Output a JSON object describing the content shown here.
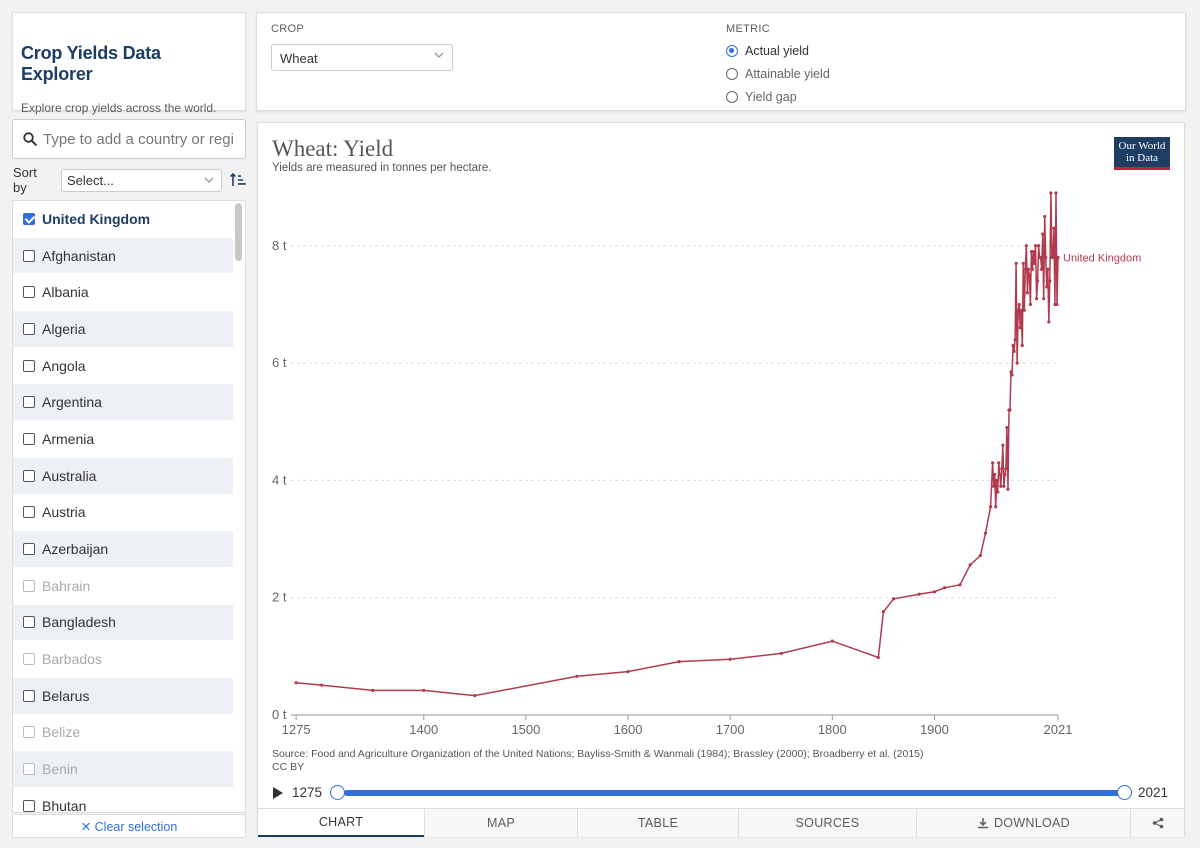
{
  "app": {
    "title": "Crop Yields Data Explorer",
    "subtitle": "Explore crop yields across the world."
  },
  "controls": {
    "crop_label": "CROP",
    "crop_value": "Wheat",
    "metric_label": "METRIC",
    "metric_options": [
      {
        "label": "Actual yield",
        "selected": true
      },
      {
        "label": "Attainable yield",
        "selected": false
      },
      {
        "label": "Yield gap",
        "selected": false
      }
    ]
  },
  "sidebar": {
    "search_placeholder": "Type to add a country or region",
    "sort_label": "Sort by",
    "sort_value": "Select...",
    "countries": [
      {
        "label": "United Kingdom",
        "checked": true,
        "disabled": false
      },
      {
        "label": "Afghanistan",
        "checked": false,
        "disabled": false
      },
      {
        "label": "Albania",
        "checked": false,
        "disabled": false
      },
      {
        "label": "Algeria",
        "checked": false,
        "disabled": false
      },
      {
        "label": "Angola",
        "checked": false,
        "disabled": false
      },
      {
        "label": "Argentina",
        "checked": false,
        "disabled": false
      },
      {
        "label": "Armenia",
        "checked": false,
        "disabled": false
      },
      {
        "label": "Australia",
        "checked": false,
        "disabled": false
      },
      {
        "label": "Austria",
        "checked": false,
        "disabled": false
      },
      {
        "label": "Azerbaijan",
        "checked": false,
        "disabled": false
      },
      {
        "label": "Bahrain",
        "checked": false,
        "disabled": true
      },
      {
        "label": "Bangladesh",
        "checked": false,
        "disabled": false
      },
      {
        "label": "Barbados",
        "checked": false,
        "disabled": true
      },
      {
        "label": "Belarus",
        "checked": false,
        "disabled": false
      },
      {
        "label": "Belize",
        "checked": false,
        "disabled": true
      },
      {
        "label": "Benin",
        "checked": false,
        "disabled": true
      },
      {
        "label": "Bhutan",
        "checked": false,
        "disabled": false
      }
    ],
    "clear_label": "✕ Clear selection"
  },
  "chart": {
    "title": "Wheat: Yield",
    "subtitle": "Yields are measured in tonnes per hectare.",
    "logo_line1": "Our World",
    "logo_line2": "in Data",
    "source_line1": "Source: Food and Agriculture Organization of the United Nations; Bayliss-Smith & Wanmali (1984); Brassley (2000); Broadberry et al. (2015)",
    "source_line2": "CC BY"
  },
  "timeline": {
    "start": "1275",
    "end": "2021"
  },
  "tabs": [
    {
      "label": "CHART",
      "active": true
    },
    {
      "label": "MAP",
      "active": false
    },
    {
      "label": "TABLE",
      "active": false
    },
    {
      "label": "SOURCES",
      "active": false
    },
    {
      "label": "DOWNLOAD",
      "active": false
    }
  ],
  "colors": {
    "series": "#b13b4e",
    "accent": "#2f6fde",
    "brand": "#1d3d63"
  },
  "chart_data": {
    "type": "line",
    "title": "Wheat: Yield",
    "subtitle": "Yields are measured in tonnes per hectare.",
    "xlabel": "",
    "ylabel": "",
    "xlim": [
      1270,
      2021
    ],
    "ylim": [
      0,
      8.9
    ],
    "x_ticks": [
      "1275",
      "1400",
      "1500",
      "1600",
      "1700",
      "1800",
      "1900",
      "2021"
    ],
    "x_tick_values": [
      1275,
      1400,
      1500,
      1600,
      1700,
      1800,
      1900,
      2021
    ],
    "y_ticks": [
      "0 t",
      "2 t",
      "4 t",
      "6 t",
      "8 t"
    ],
    "y_tick_values": [
      0,
      2,
      4,
      6,
      8
    ],
    "grid": "horizontal-dashed",
    "legend": "end-of-line label",
    "series": [
      {
        "name": "United Kingdom",
        "x": [
          1275,
          1300,
          1350,
          1400,
          1450,
          1550,
          1600,
          1650,
          1700,
          1750,
          1800,
          1845,
          1850,
          1860,
          1885,
          1900,
          1910,
          1925,
          1935,
          1945,
          1950,
          1955,
          1957,
          1958,
          1959,
          1960,
          1961,
          1962,
          1963,
          1964,
          1965,
          1966,
          1967,
          1968,
          1969,
          1970,
          1971,
          1972,
          1973,
          1974,
          1975,
          1976,
          1977,
          1978,
          1979,
          1980,
          1981,
          1982,
          1983,
          1984,
          1985,
          1986,
          1987,
          1988,
          1989,
          1990,
          1991,
          1992,
          1993,
          1994,
          1995,
          1996,
          1997,
          1998,
          1999,
          2000,
          2001,
          2002,
          2003,
          2004,
          2005,
          2006,
          2007,
          2008,
          2009,
          2010,
          2011,
          2012,
          2013,
          2014,
          2015,
          2016,
          2017,
          2018,
          2019,
          2020,
          2021
        ],
        "y": [
          0.55,
          0.51,
          0.42,
          0.42,
          0.33,
          0.66,
          0.74,
          0.91,
          0.95,
          1.05,
          1.26,
          0.98,
          1.76,
          1.98,
          2.06,
          2.1,
          2.17,
          2.22,
          2.56,
          2.72,
          3.1,
          3.55,
          4.3,
          3.9,
          4.1,
          3.55,
          4.0,
          3.8,
          4.3,
          4.1,
          3.9,
          4.2,
          4.6,
          3.9,
          4.1,
          4.2,
          4.9,
          3.85,
          5.2,
          5.2,
          5.85,
          5.8,
          6.3,
          6.2,
          6.4,
          7.7,
          6.0,
          6.9,
          7.0,
          6.6,
          6.9,
          6.3,
          7.7,
          6.9,
          7.6,
          8.0,
          7.2,
          7.6,
          7.5,
          7.0,
          7.9,
          7.6,
          7.9,
          7.7,
          8.0,
          7.1,
          7.4,
          8.0,
          7.8,
          7.8,
          7.6,
          8.2,
          7.1,
          8.5,
          7.8,
          7.3,
          7.6,
          6.7,
          7.4,
          8.9,
          7.8,
          7.8,
          8.3,
          7.0,
          8.9,
          7.0,
          7.8
        ]
      }
    ]
  }
}
